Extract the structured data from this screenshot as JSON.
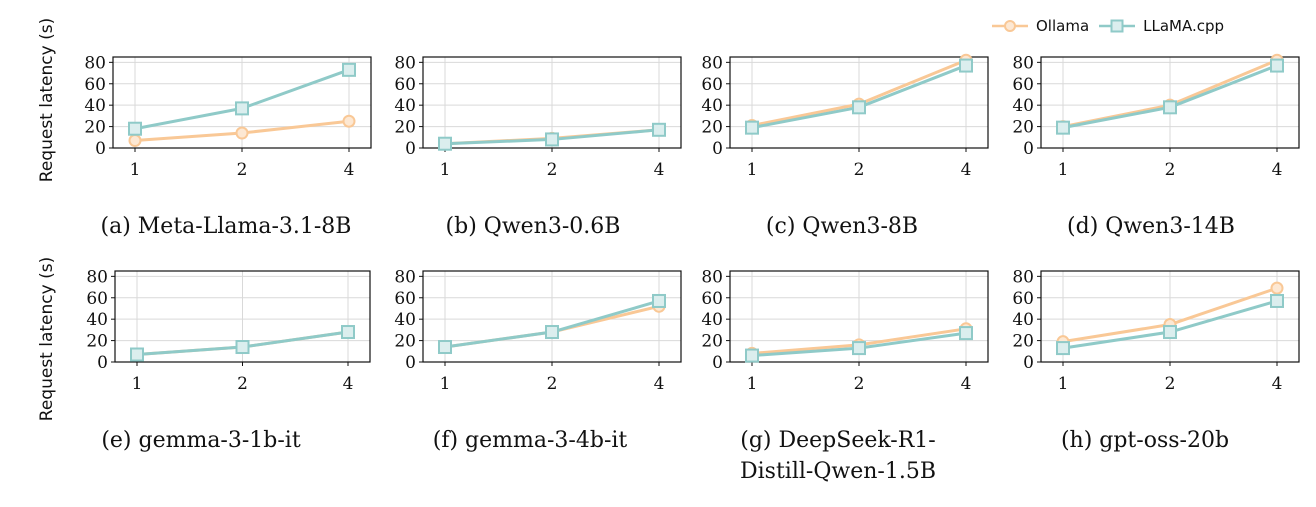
{
  "legend": {
    "ollama": "Ollama",
    "llamacpp": "LLaMA.cpp"
  },
  "colors": {
    "ollama": "#f9c896",
    "llamacpp": "#8fcac8",
    "grid": "#d9d9d9"
  },
  "row_ylabel": "Request latency (s)",
  "chart_data": [
    {
      "type": "line",
      "caption": "(a) Meta-Llama-3.1-8B",
      "categories": [
        "1",
        "2",
        "4"
      ],
      "ylim": [
        0,
        85
      ],
      "yticks": [
        0,
        20,
        40,
        60,
        80
      ],
      "series": [
        {
          "name": "Ollama",
          "values": [
            7,
            14,
            25
          ]
        },
        {
          "name": "LLaMA.cpp",
          "values": [
            18,
            37,
            73
          ]
        }
      ]
    },
    {
      "type": "line",
      "caption": "(b) Qwen3-0.6B",
      "categories": [
        "1",
        "2",
        "4"
      ],
      "ylim": [
        0,
        85
      ],
      "yticks": [
        0,
        20,
        40,
        60,
        80
      ],
      "series": [
        {
          "name": "Ollama",
          "values": [
            4,
            9,
            17
          ]
        },
        {
          "name": "LLaMA.cpp",
          "values": [
            4,
            8,
            17
          ]
        }
      ]
    },
    {
      "type": "line",
      "caption": "(c) Qwen3-8B",
      "categories": [
        "1",
        "2",
        "4"
      ],
      "ylim": [
        0,
        85
      ],
      "yticks": [
        0,
        20,
        40,
        60,
        80
      ],
      "series": [
        {
          "name": "Ollama",
          "values": [
            21,
            41,
            82
          ]
        },
        {
          "name": "LLaMA.cpp",
          "values": [
            19,
            38,
            77
          ]
        }
      ]
    },
    {
      "type": "line",
      "caption": "(d) Qwen3-14B",
      "categories": [
        "1",
        "2",
        "4"
      ],
      "ylim": [
        0,
        85
      ],
      "yticks": [
        0,
        20,
        40,
        60,
        80
      ],
      "series": [
        {
          "name": "Ollama",
          "values": [
            20,
            40,
            82
          ]
        },
        {
          "name": "LLaMA.cpp",
          "values": [
            19,
            38,
            77
          ]
        }
      ]
    },
    {
      "type": "line",
      "caption": "(e) gemma-3-1b-it",
      "categories": [
        "1",
        "2",
        "4"
      ],
      "ylim": [
        0,
        85
      ],
      "yticks": [
        0,
        20,
        40,
        60,
        80
      ],
      "series": [
        {
          "name": "Ollama",
          "values": [
            7,
            14,
            28
          ]
        },
        {
          "name": "LLaMA.cpp",
          "values": [
            7,
            14,
            28
          ]
        }
      ]
    },
    {
      "type": "line",
      "caption": "(f) gemma-3-4b-it",
      "categories": [
        "1",
        "2",
        "4"
      ],
      "ylim": [
        0,
        85
      ],
      "yticks": [
        0,
        20,
        40,
        60,
        80
      ],
      "series": [
        {
          "name": "Ollama",
          "values": [
            14,
            28,
            52
          ]
        },
        {
          "name": "LLaMA.cpp",
          "values": [
            14,
            28,
            57
          ]
        }
      ]
    },
    {
      "type": "line",
      "caption": "(g) DeepSeek-R1-\nDistill-Qwen-1.5B",
      "categories": [
        "1",
        "2",
        "4"
      ],
      "ylim": [
        0,
        85
      ],
      "yticks": [
        0,
        20,
        40,
        60,
        80
      ],
      "series": [
        {
          "name": "Ollama",
          "values": [
            8,
            16,
            31
          ]
        },
        {
          "name": "LLaMA.cpp",
          "values": [
            6,
            13,
            27
          ]
        }
      ]
    },
    {
      "type": "line",
      "caption": "(h) gpt-oss-20b",
      "categories": [
        "1",
        "2",
        "4"
      ],
      "ylim": [
        0,
        85
      ],
      "yticks": [
        0,
        20,
        40,
        60,
        80
      ],
      "series": [
        {
          "name": "Ollama",
          "values": [
            19,
            35,
            69
          ]
        },
        {
          "name": "LLaMA.cpp",
          "values": [
            13,
            28,
            57
          ]
        }
      ]
    }
  ]
}
